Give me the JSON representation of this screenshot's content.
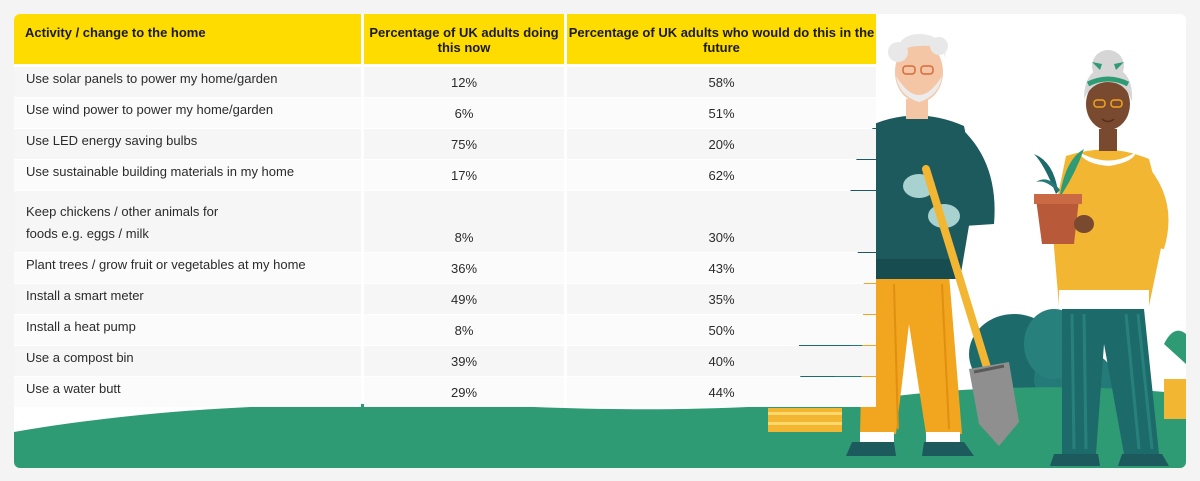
{
  "table": {
    "headers": [
      "Activity / change to the home",
      "Percentage of UK adults doing this now",
      "Percentage of UK adults who would do this in the future"
    ],
    "rows": [
      {
        "activity": "Use solar panels to power my home/garden",
        "now": "12%",
        "future": "58%"
      },
      {
        "activity": "Use wind power to power my home/garden",
        "now": "6%",
        "future": "51%"
      },
      {
        "activity": "Use LED energy saving bulbs",
        "now": "75%",
        "future": "20%"
      },
      {
        "activity": "Use sustainable building materials in my home",
        "now": "17%",
        "future": "62%"
      },
      {
        "activity": "Keep chickens / other animals for foods e.g. eggs / milk",
        "now": "8%",
        "future": "30%"
      },
      {
        "activity": "Plant trees / grow fruit or vegetables at my home",
        "now": "36%",
        "future": "43%"
      },
      {
        "activity": "Install a smart meter",
        "now": "49%",
        "future": "35%"
      },
      {
        "activity": "Install a heat pump",
        "now": "8%",
        "future": "50%"
      },
      {
        "activity": "Use a compost bin",
        "now": "39%",
        "future": "40%"
      },
      {
        "activity": "Use a water butt",
        "now": "29%",
        "future": "44%"
      }
    ]
  },
  "illustration": {
    "figures": [
      "elderly-man-with-shovel",
      "elderly-woman-with-potted-plant"
    ],
    "colors": {
      "grass": "#2f9b74",
      "bushes": "#1d6a6b",
      "header_yellow": "#ffdc00"
    }
  }
}
